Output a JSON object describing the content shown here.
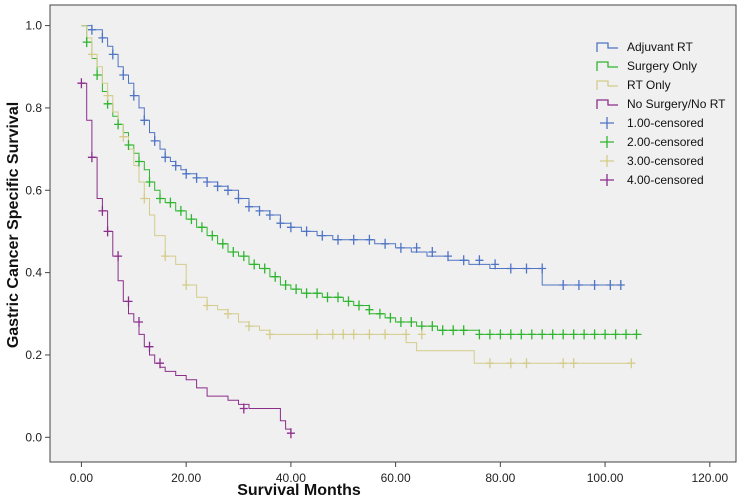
{
  "chart_data": {
    "type": "line",
    "title": "",
    "xlabel": "Survival Months",
    "ylabel": "Gastric Cancer Specific Survival",
    "xlim": [
      -6,
      125
    ],
    "ylim": [
      -0.06,
      1.05
    ],
    "xticks": [
      0,
      20,
      40,
      60,
      80,
      100,
      120
    ],
    "xtick_labels": [
      "0.00",
      "20.00",
      "40.00",
      "60.00",
      "80.00",
      "100.00",
      "120.00"
    ],
    "yticks": [
      0,
      0.2,
      0.4,
      0.6,
      0.8,
      1.0
    ],
    "ytick_labels": [
      "0.0",
      "0.2",
      "0.4",
      "0.6",
      "0.8",
      "1.0"
    ],
    "grid": false,
    "legend_position": "right",
    "plot_background": "#f0f0f0",
    "series": [
      {
        "name": "Adjuvant RT",
        "color": "#4f74c4",
        "x": [
          0,
          2,
          4,
          5,
          6,
          7,
          8,
          9,
          10,
          11,
          12,
          13,
          14,
          15,
          16,
          17,
          18,
          19,
          20,
          22,
          24,
          26,
          28,
          30,
          32,
          34,
          36,
          38,
          40,
          42,
          45,
          48,
          52,
          56,
          60,
          63,
          66,
          70,
          74,
          78,
          82,
          85,
          88,
          90,
          103
        ],
        "y": [
          1.0,
          0.99,
          0.97,
          0.95,
          0.93,
          0.9,
          0.88,
          0.86,
          0.83,
          0.8,
          0.77,
          0.74,
          0.72,
          0.7,
          0.68,
          0.67,
          0.66,
          0.65,
          0.64,
          0.63,
          0.62,
          0.61,
          0.6,
          0.58,
          0.56,
          0.55,
          0.54,
          0.52,
          0.51,
          0.5,
          0.49,
          0.48,
          0.48,
          0.47,
          0.46,
          0.45,
          0.44,
          0.43,
          0.42,
          0.41,
          0.41,
          0.41,
          0.37,
          0.37,
          0.37
        ]
      },
      {
        "name": "Surgery Only",
        "color": "#2fb52f",
        "x": [
          0,
          1,
          2,
          3,
          4,
          5,
          6,
          7,
          8,
          9,
          10,
          11,
          12,
          13,
          14,
          15,
          16,
          18,
          20,
          22,
          24,
          26,
          28,
          30,
          32,
          34,
          36,
          38,
          40,
          42,
          44,
          46,
          48,
          50,
          52,
          55,
          58,
          60,
          62,
          64,
          66,
          68,
          70,
          72,
          74,
          76,
          80,
          90,
          100,
          107
        ],
        "y": [
          1.0,
          0.96,
          0.92,
          0.88,
          0.84,
          0.81,
          0.78,
          0.76,
          0.74,
          0.71,
          0.69,
          0.67,
          0.65,
          0.62,
          0.6,
          0.58,
          0.57,
          0.55,
          0.53,
          0.51,
          0.49,
          0.47,
          0.45,
          0.44,
          0.42,
          0.41,
          0.39,
          0.37,
          0.36,
          0.35,
          0.35,
          0.34,
          0.34,
          0.33,
          0.32,
          0.3,
          0.29,
          0.28,
          0.28,
          0.27,
          0.27,
          0.26,
          0.26,
          0.26,
          0.26,
          0.25,
          0.25,
          0.25,
          0.25,
          0.25
        ]
      },
      {
        "name": "RT Only",
        "color": "#d4cc8a",
        "x": [
          0,
          1,
          2,
          3,
          4,
          5,
          6,
          7,
          8,
          9,
          10,
          11,
          12,
          13,
          14,
          16,
          18,
          20,
          22,
          24,
          26,
          28,
          30,
          32,
          34,
          36,
          55,
          62,
          64,
          75,
          80,
          105
        ],
        "y": [
          1.0,
          0.97,
          0.93,
          0.9,
          0.86,
          0.83,
          0.79,
          0.76,
          0.73,
          0.7,
          0.66,
          0.62,
          0.58,
          0.54,
          0.49,
          0.44,
          0.42,
          0.37,
          0.34,
          0.32,
          0.31,
          0.3,
          0.28,
          0.27,
          0.26,
          0.25,
          0.25,
          0.23,
          0.21,
          0.18,
          0.18,
          0.18
        ]
      },
      {
        "name": "No Surgery/No RT",
        "color": "#8b2e8b",
        "x": [
          0,
          1,
          2,
          3,
          4,
          5,
          6,
          7,
          8,
          9,
          10,
          11,
          12,
          13,
          14,
          15,
          16,
          18,
          20,
          22,
          24,
          26,
          28,
          30,
          32,
          34,
          38,
          39,
          40
        ],
        "y": [
          0.86,
          0.77,
          0.68,
          0.58,
          0.55,
          0.5,
          0.44,
          0.38,
          0.33,
          0.3,
          0.28,
          0.25,
          0.22,
          0.2,
          0.18,
          0.17,
          0.16,
          0.15,
          0.14,
          0.12,
          0.1,
          0.1,
          0.09,
          0.08,
          0.07,
          0.07,
          0.04,
          0.02,
          0.01
        ]
      }
    ],
    "censored": [
      {
        "name": "1.00-censored",
        "color": "#4f74c4",
        "x": [
          2,
          4,
          6,
          8,
          10,
          12,
          14,
          16,
          18,
          20,
          22,
          24,
          26,
          28,
          30,
          32,
          34,
          36,
          38,
          40,
          43,
          46,
          49,
          52,
          55,
          58,
          61,
          64,
          67,
          70,
          73,
          76,
          79,
          82,
          85,
          88,
          92,
          95,
          98,
          101,
          103
        ],
        "y": [
          0.99,
          0.97,
          0.93,
          0.88,
          0.83,
          0.77,
          0.72,
          0.68,
          0.66,
          0.64,
          0.63,
          0.62,
          0.61,
          0.6,
          0.58,
          0.56,
          0.55,
          0.54,
          0.52,
          0.51,
          0.5,
          0.49,
          0.48,
          0.48,
          0.48,
          0.47,
          0.46,
          0.46,
          0.45,
          0.44,
          0.43,
          0.43,
          0.42,
          0.41,
          0.41,
          0.41,
          0.37,
          0.37,
          0.37,
          0.37,
          0.37
        ]
      },
      {
        "name": "2.00-censored",
        "color": "#2fb52f",
        "x": [
          1,
          3,
          5,
          7,
          9,
          11,
          13,
          15,
          17,
          19,
          21,
          23,
          25,
          27,
          29,
          31,
          33,
          35,
          37,
          39,
          41,
          43,
          45,
          47,
          49,
          51,
          53,
          55,
          57,
          59,
          61,
          63,
          65,
          67,
          69,
          71,
          73,
          76,
          78,
          80,
          82,
          84,
          86,
          88,
          90,
          92,
          94,
          96,
          98,
          100,
          102,
          104,
          106
        ],
        "y": [
          0.96,
          0.88,
          0.81,
          0.76,
          0.71,
          0.67,
          0.62,
          0.58,
          0.57,
          0.55,
          0.53,
          0.51,
          0.49,
          0.47,
          0.45,
          0.44,
          0.42,
          0.41,
          0.39,
          0.37,
          0.36,
          0.35,
          0.35,
          0.34,
          0.34,
          0.33,
          0.32,
          0.31,
          0.3,
          0.29,
          0.28,
          0.28,
          0.27,
          0.27,
          0.26,
          0.26,
          0.26,
          0.25,
          0.25,
          0.25,
          0.25,
          0.25,
          0.25,
          0.25,
          0.25,
          0.25,
          0.25,
          0.25,
          0.25,
          0.25,
          0.25,
          0.25,
          0.25
        ]
      },
      {
        "name": "3.00-censored",
        "color": "#d4cc8a",
        "x": [
          2,
          5,
          8,
          12,
          16,
          20,
          24,
          28,
          32,
          36,
          45,
          48,
          50,
          52,
          55,
          58,
          62,
          65,
          78,
          82,
          85,
          92,
          94,
          105
        ],
        "y": [
          0.93,
          0.83,
          0.73,
          0.58,
          0.44,
          0.37,
          0.32,
          0.3,
          0.27,
          0.25,
          0.25,
          0.25,
          0.25,
          0.25,
          0.25,
          0.25,
          0.25,
          0.25,
          0.18,
          0.18,
          0.18,
          0.18,
          0.18,
          0.18
        ]
      },
      {
        "name": "4.00-censored",
        "color": "#8b2e8b",
        "x": [
          0,
          2,
          4,
          5,
          7,
          9,
          11,
          13,
          15,
          31,
          40
        ],
        "y": [
          0.86,
          0.68,
          0.55,
          0.5,
          0.44,
          0.33,
          0.28,
          0.22,
          0.18,
          0.07,
          0.01
        ]
      }
    ]
  }
}
